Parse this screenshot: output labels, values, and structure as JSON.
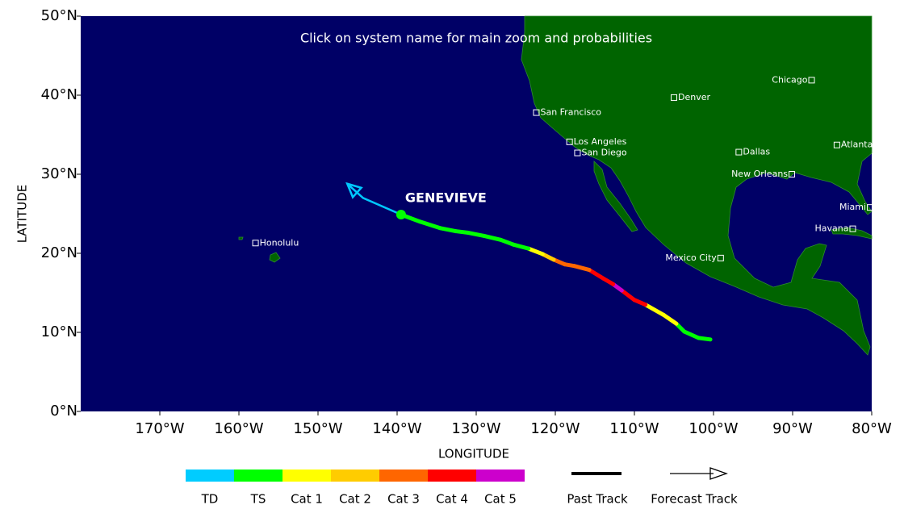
{
  "map": {
    "annotation": "Click on system name for main zoom and probabilities",
    "x_label": "LONGITUDE",
    "y_label": "LATITUDE",
    "xlim": [
      -180,
      -80
    ],
    "ylim": [
      0,
      50
    ],
    "xticks": [
      {
        "value": -170,
        "label": "170°W"
      },
      {
        "value": -160,
        "label": "160°W"
      },
      {
        "value": -150,
        "label": "150°W"
      },
      {
        "value": -140,
        "label": "140°W"
      },
      {
        "value": -130,
        "label": "130°W"
      },
      {
        "value": -120,
        "label": "120°W"
      },
      {
        "value": -110,
        "label": "110°W"
      },
      {
        "value": -100,
        "label": "100°W"
      },
      {
        "value": -90,
        "label": "90°W"
      },
      {
        "value": -80,
        "label": "80°W"
      }
    ],
    "yticks": [
      {
        "value": 0,
        "label": "0°N"
      },
      {
        "value": 10,
        "label": "10°N"
      },
      {
        "value": 20,
        "label": "20°N"
      },
      {
        "value": 30,
        "label": "30°N"
      },
      {
        "value": 40,
        "label": "40°N"
      },
      {
        "value": 50,
        "label": "50°N"
      }
    ],
    "cities": [
      {
        "name": "Honolulu",
        "lon": -157.9,
        "lat": 21.3
      },
      {
        "name": "San Francisco",
        "lon": -122.4,
        "lat": 37.8
      },
      {
        "name": "Los Angeles",
        "lon": -118.2,
        "lat": 34.1
      },
      {
        "name": "San Diego",
        "lon": -117.2,
        "lat": 32.7
      },
      {
        "name": "Denver",
        "lon": -105.0,
        "lat": 39.7
      },
      {
        "name": "Chicago",
        "lon": -87.6,
        "lat": 41.9
      },
      {
        "name": "Dallas",
        "lon": -96.8,
        "lat": 32.8
      },
      {
        "name": "Atlanta",
        "lon": -84.4,
        "lat": 33.7
      },
      {
        "name": "New Orleans",
        "lon": -90.1,
        "lat": 30.0
      },
      {
        "name": "Miami",
        "lon": -80.2,
        "lat": 25.8
      },
      {
        "name": "Havana",
        "lon": -82.4,
        "lat": 23.1
      },
      {
        "name": "Mexico City",
        "lon": -99.1,
        "lat": 19.4
      }
    ],
    "storm": {
      "name": "GENEVIEVE",
      "past_track": [
        {
          "lon": -100.4,
          "lat": 9.1,
          "category": "TD"
        },
        {
          "lon": -101.9,
          "lat": 9.3,
          "category": "TS"
        },
        {
          "lon": -103.7,
          "lat": 10.1,
          "category": "TS"
        },
        {
          "lon": -104.7,
          "lat": 11.1,
          "category": "TS"
        },
        {
          "lon": -106.3,
          "lat": 12.2,
          "category": "Cat 1"
        },
        {
          "lon": -108.6,
          "lat": 13.5,
          "category": "Cat 1"
        },
        {
          "lon": -110.0,
          "lat": 14.1,
          "category": "Cat 4"
        },
        {
          "lon": -111.6,
          "lat": 15.3,
          "category": "Cat 4"
        },
        {
          "lon": -112.7,
          "lat": 16.1,
          "category": "Cat 5"
        },
        {
          "lon": -113.9,
          "lat": 16.8,
          "category": "Cat 4"
        },
        {
          "lon": -115.7,
          "lat": 17.9,
          "category": "Cat 4"
        },
        {
          "lon": -117.6,
          "lat": 18.4,
          "category": "Cat 3"
        },
        {
          "lon": -118.8,
          "lat": 18.6,
          "category": "Cat 3"
        },
        {
          "lon": -120.2,
          "lat": 19.2,
          "category": "Cat 3"
        },
        {
          "lon": -121.6,
          "lat": 19.9,
          "category": "Cat 2"
        },
        {
          "lon": -123.4,
          "lat": 20.6,
          "category": "Cat 1"
        },
        {
          "lon": -125.3,
          "lat": 21.1,
          "category": "TS"
        },
        {
          "lon": -126.9,
          "lat": 21.7,
          "category": "TS"
        },
        {
          "lon": -129.0,
          "lat": 22.2,
          "category": "TS"
        },
        {
          "lon": -131.0,
          "lat": 22.6,
          "category": "TS"
        },
        {
          "lon": -132.6,
          "lat": 22.8,
          "category": "TS"
        },
        {
          "lon": -134.6,
          "lat": 23.2,
          "category": "TS"
        },
        {
          "lon": -137.1,
          "lat": 24.0,
          "category": "TS"
        },
        {
          "lon": -139.5,
          "lat": 24.9,
          "category": "TS"
        }
      ],
      "forecast_track": [
        {
          "lon": -139.5,
          "lat": 24.9
        },
        {
          "lon": -144.3,
          "lat": 27.0
        },
        {
          "lon": -146.3,
          "lat": 28.8
        }
      ],
      "forecast_color": "#00c8ff"
    },
    "legend": {
      "categories": [
        {
          "label": "TD",
          "color": "#00ccff"
        },
        {
          "label": "TS",
          "color": "#00ff00"
        },
        {
          "label": "Cat 1",
          "color": "#ffff00"
        },
        {
          "label": "Cat 2",
          "color": "#ffcc00"
        },
        {
          "label": "Cat 3",
          "color": "#ff6600"
        },
        {
          "label": "Cat 4",
          "color": "#ff0000"
        },
        {
          "label": "Cat 5",
          "color": "#cc00cc"
        }
      ],
      "past_track": "Past Track",
      "forecast_track": "Forecast Track"
    }
  }
}
